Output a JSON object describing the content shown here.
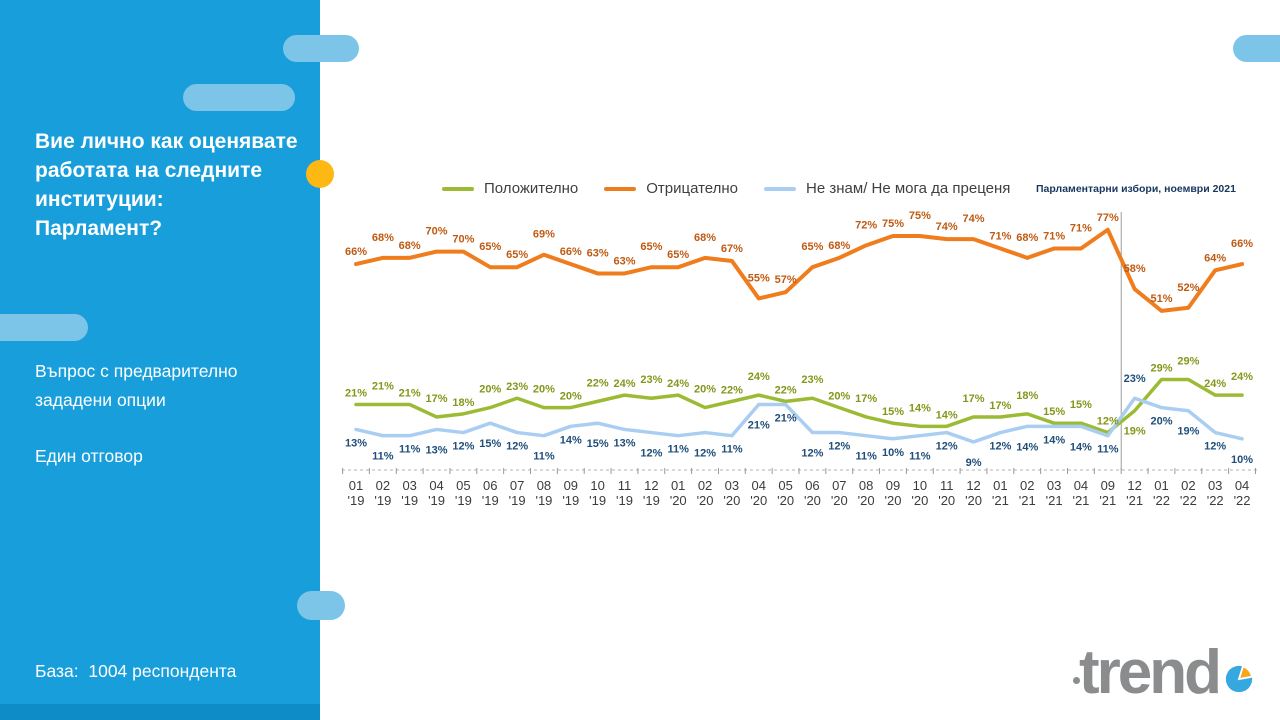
{
  "sidebar": {
    "title_question": "Вие лично как оценявате работата на следните институции:",
    "title_subject": "Парламент?",
    "subtitle": "Въпрос с предварително зададени опции",
    "answer_type": "Един отговор",
    "base_label": "База:  1004 респондента"
  },
  "logo": {
    "text": "trend"
  },
  "colors": {
    "panel": "#189fdb",
    "panel_strip": "#0d8cc7",
    "decor_pill": "#7cc4e8",
    "accent_dot": "#fdb813",
    "positive": "#9cbb35",
    "negative": "#f07d1d",
    "dont_know": "#a9cef1"
  },
  "chart_data": {
    "type": "line",
    "unit": "%",
    "grid": false,
    "legend_position": "top",
    "ylim": [
      0,
      100
    ],
    "categories": [
      "01 '19",
      "02 '19",
      "03 '19",
      "04 '19",
      "05 '19",
      "06 '19",
      "07 '19",
      "08 '19",
      "09 '19",
      "10 '19",
      "11 '19",
      "12 '19",
      "01 '20",
      "02 '20",
      "03 '20",
      "04 '20",
      "05 '20",
      "06 '20",
      "07 '20",
      "08 '20",
      "09 '20",
      "10 '20",
      "11 '20",
      "12 '20",
      "01 '21",
      "02 '21",
      "03 '21",
      "04 '21",
      "09 '21",
      "12 '21",
      "01 '22",
      "02 '22",
      "03 '22",
      "04 '22"
    ],
    "series": [
      {
        "name": "Положително",
        "color": "#9cbb35",
        "label_color": "#83971a",
        "values": [
          21,
          21,
          21,
          17,
          18,
          20,
          23,
          20,
          20,
          22,
          24,
          23,
          24,
          20,
          22,
          24,
          22,
          23,
          20,
          17,
          15,
          14,
          14,
          17,
          17,
          18,
          15,
          15,
          12,
          19,
          29,
          29,
          24,
          24
        ]
      },
      {
        "name": "Отрицателно",
        "color": "#f07d1d",
        "label_color": "#bf5a12",
        "values": [
          66,
          68,
          68,
          70,
          70,
          65,
          65,
          69,
          66,
          63,
          63,
          65,
          65,
          68,
          67,
          55,
          57,
          65,
          68,
          72,
          75,
          75,
          74,
          74,
          71,
          68,
          71,
          71,
          77,
          58,
          51,
          52,
          64,
          66
        ]
      },
      {
        "name": "Не знам/ Не мога да преценя",
        "color": "#a9cef1",
        "label_color": "#1f4e79",
        "values": [
          13,
          11,
          11,
          13,
          12,
          15,
          12,
          11,
          14,
          15,
          13,
          12,
          11,
          12,
          11,
          21,
          21,
          12,
          12,
          11,
          10,
          11,
          12,
          9,
          12,
          14,
          14,
          14,
          11,
          23,
          20,
          19,
          12,
          10
        ]
      }
    ],
    "annotation": {
      "text": "Парламентарни избори, ноември 2021",
      "after_category": "09 '21"
    }
  }
}
